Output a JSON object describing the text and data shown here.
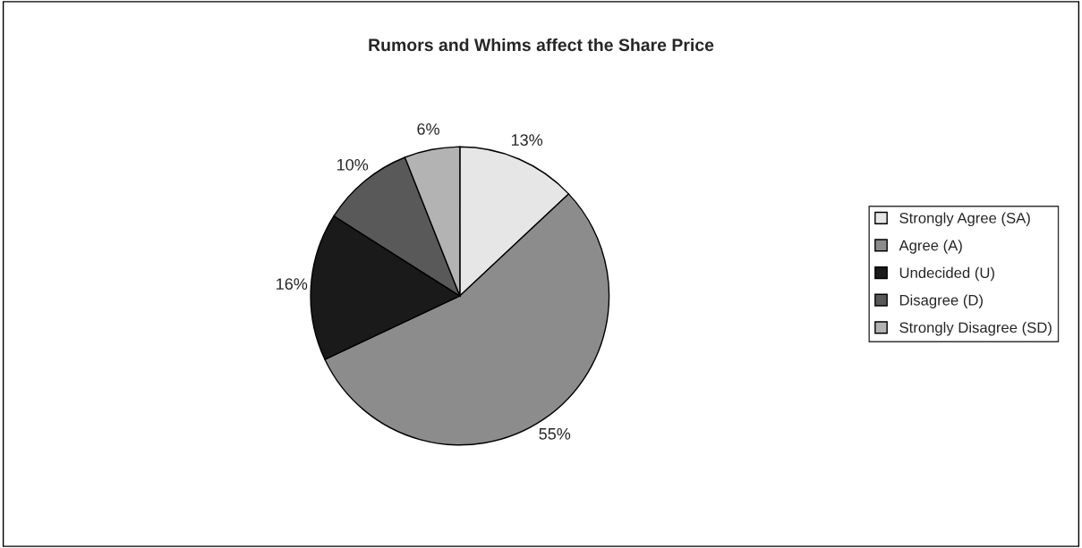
{
  "chart_data": {
    "type": "pie",
    "title": "Rumors and Whims affect the Share Price",
    "categories": [
      "Strongly Agree (SA)",
      "Agree (A)",
      "Undecided (U)",
      "Disagree (D)",
      "Strongly Disagree (SD)"
    ],
    "values": [
      13,
      55,
      16,
      10,
      6
    ],
    "colors": [
      "#e6e6e6",
      "#8c8c8c",
      "#1a1a1a",
      "#595959",
      "#b3b3b3"
    ],
    "value_labels": [
      "13%",
      "55%",
      "16%",
      "10%",
      "6%"
    ],
    "legend": "right"
  }
}
